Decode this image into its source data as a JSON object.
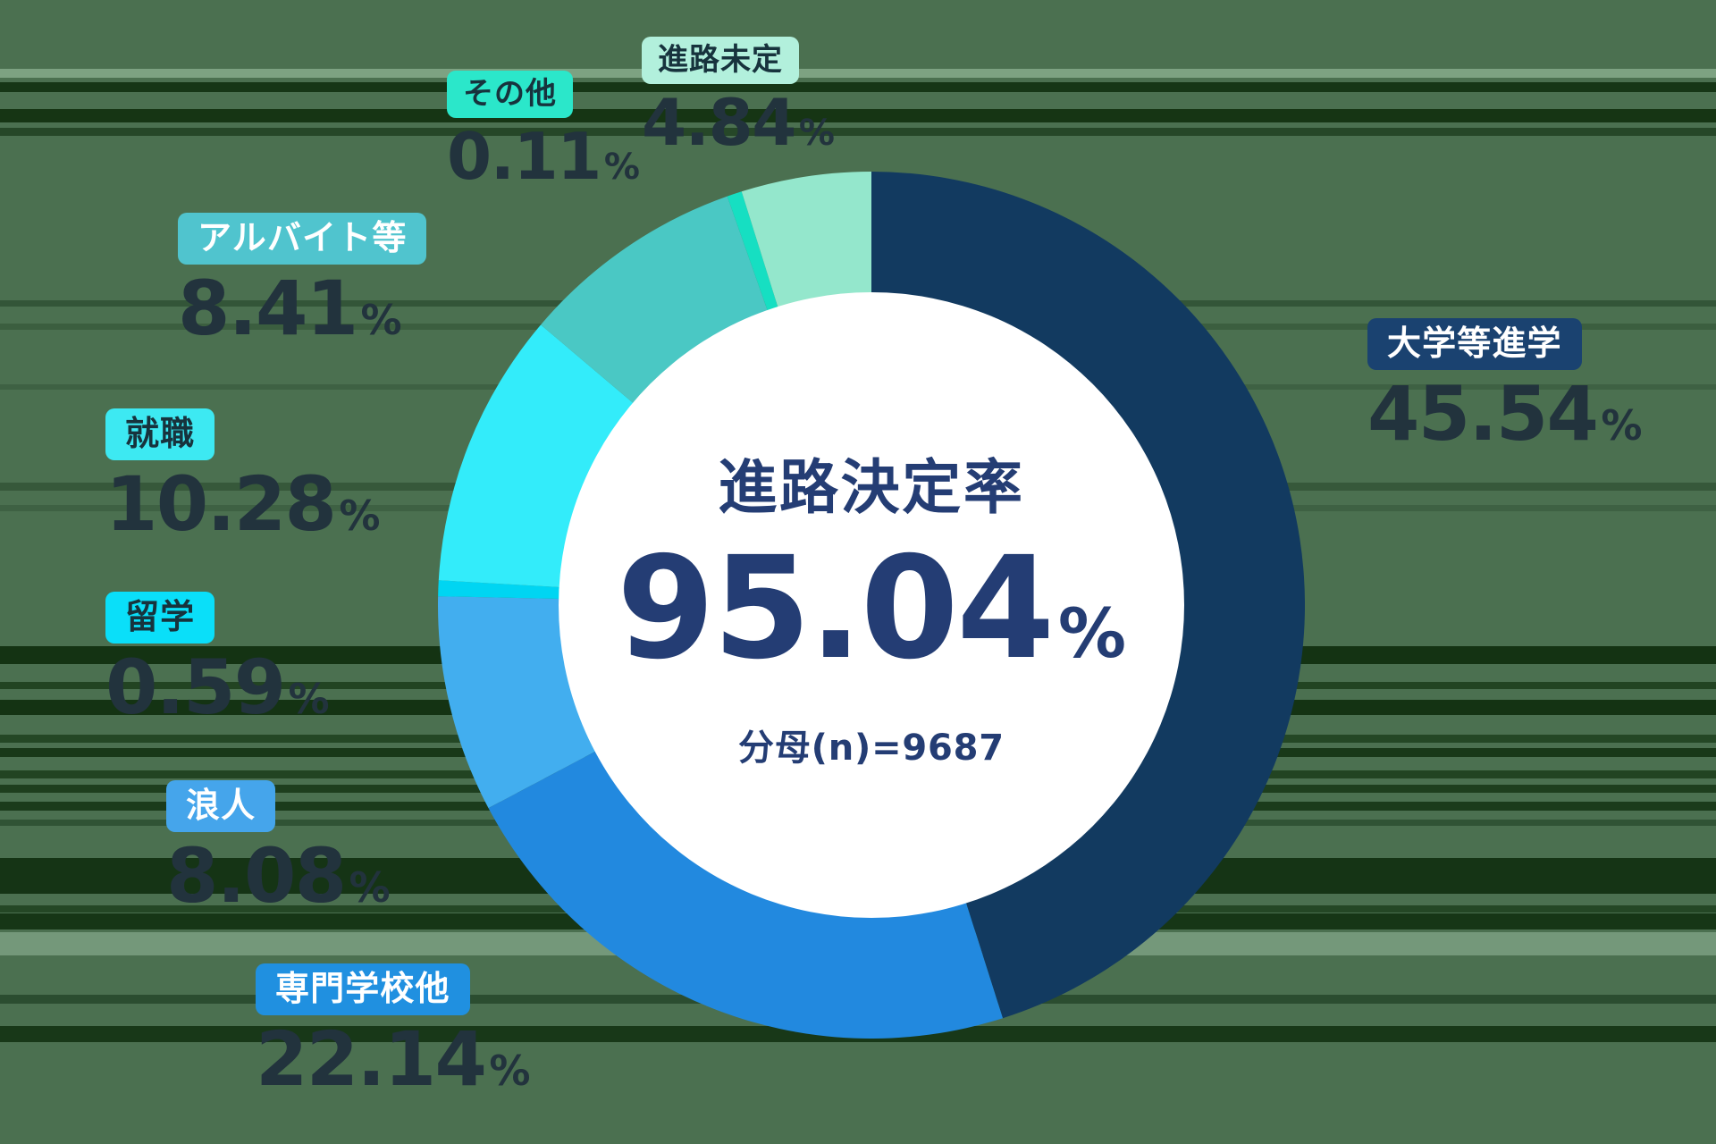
{
  "background": {
    "base_color": "#4B7050"
  },
  "chart_data": {
    "type": "pie",
    "subtype": "donut",
    "title": "進路決定率",
    "legend_position": "callouts-around-donut",
    "start_angle_deg": 0,
    "direction": "clockwise",
    "inner_radius_ratio": 0.72,
    "min_slice_deg": 2,
    "center": {
      "title": "進路決定率",
      "value": "95.04",
      "unit": "%",
      "denominator": "分母(n)=9687",
      "denominator_n": 9687,
      "text_color": "#243D74"
    },
    "segments": [
      {
        "id": "daigaku",
        "label": "大学等進学",
        "value": 45.54,
        "color": "#123A60"
      },
      {
        "id": "senmon",
        "label": "専門学校他",
        "value": 22.14,
        "color": "#2289DF"
      },
      {
        "id": "ronin",
        "label": "浪人",
        "value": 8.08,
        "color": "#42AEEF"
      },
      {
        "id": "ryugaku",
        "label": "留学",
        "value": 0.59,
        "color": "#00D5F2"
      },
      {
        "id": "shushoku",
        "label": "就職",
        "value": 10.28,
        "color": "#33ECFA"
      },
      {
        "id": "arubaito",
        "label": "アルバイト等",
        "value": 8.41,
        "color": "#4AC8C4"
      },
      {
        "id": "sonota",
        "label": "その他",
        "value": 0.11,
        "color": "#16DFC2"
      },
      {
        "id": "mitei",
        "label": "進路未定",
        "value": 4.84,
        "color": "#94E7CC"
      }
    ]
  },
  "callouts": [
    {
      "id": "daigaku",
      "label": "大学等進学",
      "value": "45.54",
      "unit": "%",
      "badge_bg": "#1A4270",
      "badge_text": "#FFFFFF"
    },
    {
      "id": "senmon",
      "label": "専門学校他",
      "value": "22.14",
      "unit": "%",
      "badge_bg": "#2090E0",
      "badge_text": "#FFFFFF"
    },
    {
      "id": "ronin",
      "label": "浪人",
      "value": "8.08",
      "unit": "%",
      "badge_bg": "#45A5EB",
      "badge_text": "#FFFFFF"
    },
    {
      "id": "ryugaku",
      "label": "留学",
      "value": "0.59",
      "unit": "%",
      "badge_bg": "#0ADFF9",
      "badge_text": "#17333D"
    },
    {
      "id": "shushoku",
      "label": "就職",
      "value": "10.28",
      "unit": "%",
      "badge_bg": "#3DE9F2",
      "badge_text": "#17333D"
    },
    {
      "id": "arubaito",
      "label": "アルバイト等",
      "value": "8.41",
      "unit": "%",
      "badge_bg": "#50C4CE",
      "badge_text": "#FFFFFF"
    },
    {
      "id": "sonota",
      "label": "その他",
      "value": "0.11",
      "unit": "%",
      "badge_bg": "#2BE7CA",
      "badge_text": "#17333D"
    },
    {
      "id": "mitei",
      "label": "進路未定",
      "value": "4.84",
      "unit": "%",
      "badge_bg": "#B2F0DC",
      "badge_text": "#17333D"
    }
  ]
}
